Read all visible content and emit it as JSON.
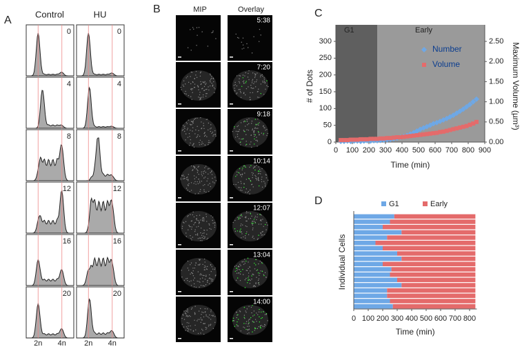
{
  "figure": {
    "panel_a": {
      "label": "A",
      "columns": [
        "Control",
        "HU"
      ],
      "rows": [
        "0",
        "4",
        "8",
        "12",
        "16",
        "20"
      ],
      "x_labels": [
        "2n",
        "4n"
      ]
    },
    "panel_b": {
      "label": "B",
      "columns": [
        "MIP",
        "Overlay"
      ],
      "times": [
        "5:38",
        "7:20",
        "9:18",
        "10:14",
        "12:07",
        "13:04",
        "14:00"
      ]
    }
  },
  "chart_data": [
    {
      "type": "scatter",
      "label": "C",
      "x_label": "Time (min)",
      "y_label": "# of Dots",
      "y2_label": "Maximum Volume (µm³)",
      "regions": [
        {
          "label": "G1",
          "start": 0,
          "end": 250,
          "color": "#5f5f5f"
        },
        {
          "label": "Early",
          "start": 250,
          "end": 900,
          "color": "#9a9a9a"
        }
      ],
      "x": [
        30,
        50,
        70,
        90,
        110,
        130,
        150,
        170,
        190,
        210,
        230,
        250,
        270,
        290,
        310,
        330,
        350,
        370,
        390,
        410,
        430,
        450,
        470,
        490,
        510,
        530,
        550,
        570,
        590,
        610,
        630,
        650,
        670,
        690,
        710,
        730,
        750,
        770,
        790,
        810,
        830,
        850
      ],
      "series": [
        {
          "name": "Number",
          "color": "#6ea8e6",
          "marker": "diamond",
          "values": [
            2,
            2,
            3,
            2,
            3,
            3,
            2,
            3,
            4,
            3,
            4,
            4,
            5,
            6,
            7,
            8,
            10,
            12,
            14,
            17,
            20,
            24,
            28,
            33,
            38,
            42,
            46,
            50,
            55,
            58,
            62,
            66,
            70,
            75,
            80,
            86,
            92,
            98,
            105,
            112,
            120,
            128
          ]
        },
        {
          "name": "Volume",
          "color": "#e46b6b",
          "marker": "square",
          "axis": "y2",
          "values": [
            0.05,
            0.05,
            0.05,
            0.06,
            0.06,
            0.06,
            0.07,
            0.07,
            0.07,
            0.08,
            0.08,
            0.08,
            0.09,
            0.09,
            0.1,
            0.1,
            0.11,
            0.12,
            0.12,
            0.13,
            0.14,
            0.15,
            0.16,
            0.17,
            0.18,
            0.19,
            0.2,
            0.21,
            0.22,
            0.23,
            0.25,
            0.26,
            0.28,
            0.3,
            0.32,
            0.34,
            0.36,
            0.38,
            0.4,
            0.43,
            0.46,
            0.5
          ]
        }
      ],
      "xlim": [
        0,
        900
      ],
      "xticks": [
        0,
        100,
        200,
        300,
        400,
        500,
        600,
        700,
        800,
        900
      ],
      "ylim": [
        0,
        300
      ],
      "yticks": [
        0,
        50,
        100,
        150,
        200,
        250,
        300
      ],
      "y2lim": [
        0,
        2.5
      ],
      "y2ticks": [
        {
          "value": 0,
          "label": "0.00"
        },
        {
          "value": 0.5,
          "label": "0.50"
        },
        {
          "value": 1,
          "label": "1.00"
        },
        {
          "value": 1.5,
          "label": "1.50"
        },
        {
          "value": 2,
          "label": "2.00"
        },
        {
          "value": 2.5,
          "label": "2.50"
        }
      ],
      "legend": "upper right"
    },
    {
      "type": "bar",
      "orientation": "horizontal",
      "stacked": true,
      "label": "D",
      "x_label": "Time (min)",
      "y_label": "Individual Cells",
      "series": [
        {
          "name": "G1",
          "color": "#6ea8e6",
          "values": [
            280,
            250,
            200,
            330,
            230,
            150,
            200,
            300,
            330,
            200,
            260,
            250,
            300,
            330,
            230,
            230,
            250,
            270
          ]
        },
        {
          "name": "Early",
          "color": "#e46b6b",
          "values": [
            560,
            590,
            640,
            510,
            610,
            690,
            640,
            540,
            510,
            640,
            580,
            590,
            540,
            510,
            610,
            610,
            590,
            570
          ]
        }
      ],
      "xlim": [
        0,
        850
      ],
      "xticks": [
        0,
        100,
        200,
        300,
        400,
        500,
        600,
        700,
        800
      ],
      "legend": "top"
    }
  ]
}
